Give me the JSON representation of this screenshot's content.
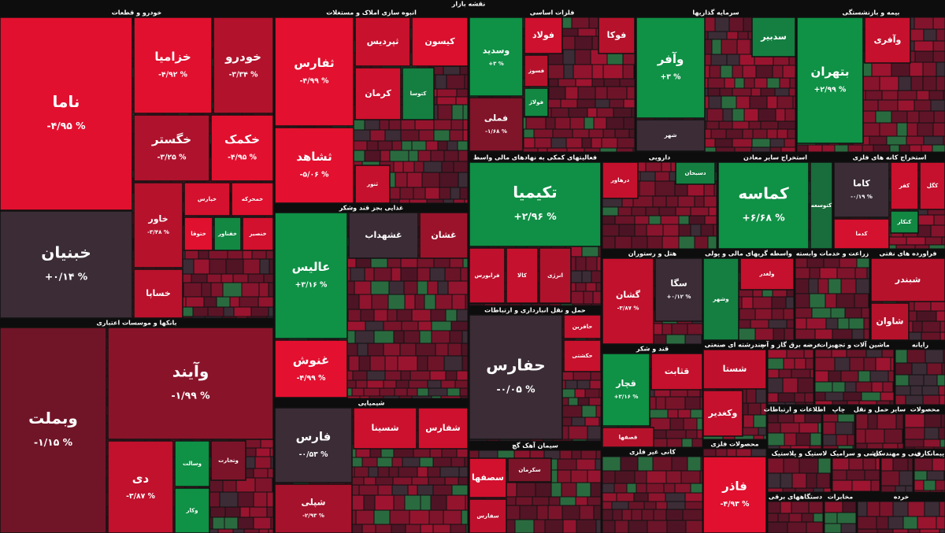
{
  "chart_data": {
    "type": "treemap",
    "title": "نقشه بازار",
    "sectors": [
      {
        "name": "خودرو و قطعات",
        "tiles": [
          {
            "name": "ناما",
            "value": -4.95,
            "value_label": "-۴/۹۵ %"
          },
          {
            "name": "خبنیان",
            "value": 0.14,
            "value_label": "+۰/۱۴ %"
          },
          {
            "name": "خزامیا",
            "value": -4.92,
            "value_label": "-۴/۹۲ %"
          },
          {
            "name": "خودرو",
            "value": -3.34,
            "value_label": "-۳/۳۴ %"
          },
          {
            "name": "خگستر",
            "value": -3.25,
            "value_label": "-۳/۲۵ %"
          },
          {
            "name": "خکمک",
            "value": -4.95,
            "value_label": "-۴/۹۵ %"
          },
          {
            "name": "خاور",
            "value": -3.48,
            "value_label": "-۳/۴۸ %"
          },
          {
            "name": "خساپا",
            "value": -3.61
          },
          {
            "name": "خپارس",
            "value": -4.5
          },
          {
            "name": "خمحرکه",
            "value": -4.9
          },
          {
            "name": "ختوقا",
            "value": -4.9
          },
          {
            "name": "خفناور",
            "value": 2.5
          },
          {
            "name": "خنصیر",
            "value": -4.4
          }
        ]
      },
      {
        "name": "بانکها و موسسات اعتباری",
        "tiles": [
          {
            "name": "وبملت",
            "value": -1.15,
            "value_label": "-۱/۱۵ %"
          },
          {
            "name": "وآیند",
            "value": -1.99,
            "value_label": "-۱/۹۹ %"
          },
          {
            "name": "دی",
            "value": -3.87,
            "value_label": "-۳/۸۷ %"
          },
          {
            "name": "وسالت",
            "value": 3
          },
          {
            "name": "وتجارت",
            "value": -1.5
          },
          {
            "name": "وکار",
            "value": 3
          }
        ]
      },
      {
        "name": "انبوه سازی املاک و مستغلات",
        "tiles": [
          {
            "name": "ثفارس",
            "value": -4.99,
            "value_label": "-۴/۹۹ %"
          },
          {
            "name": "ثشاهد",
            "value": -5.06,
            "value_label": "-۵/۰۶ %"
          },
          {
            "name": "ثپردیس",
            "value": -4.1
          },
          {
            "name": "کیسون",
            "value": -4.7
          },
          {
            "name": "کرمان",
            "value": -4.3
          },
          {
            "name": "کتوسا",
            "value": 2
          },
          {
            "name": "ثنور",
            "value": -4
          }
        ]
      },
      {
        "name": "غذایی بجز قند وشکر",
        "tiles": [
          {
            "name": "عالیس",
            "value": 3.16,
            "value_label": "+۳/۱۶ %"
          },
          {
            "name": "غنوش",
            "value": -4.99,
            "value_label": "-۴/۹۹ %"
          },
          {
            "name": "غشهداب",
            "value": -0.3
          },
          {
            "name": "غشان",
            "value": -2.6
          }
        ]
      },
      {
        "name": "شیمیایی",
        "tiles": [
          {
            "name": "فارس",
            "value": -0.53,
            "value_label": "-۰/۵۳ %"
          },
          {
            "name": "شپلی",
            "value": -2.93,
            "value_label": "-۲/۹۳ %"
          },
          {
            "name": "شسینا",
            "value": -4.2
          },
          {
            "name": "شفارس",
            "value": -4.3
          }
        ]
      },
      {
        "name": "فلزات اساسی",
        "tiles": [
          {
            "name": "وسدید",
            "value": 3,
            "value_label": "+۳ %"
          },
          {
            "name": "فملی",
            "value": -1.68,
            "value_label": "-۱/۶۸ %"
          },
          {
            "name": "فولاد",
            "value": -4.3
          },
          {
            "name": "فوکا",
            "value": -3.5
          },
          {
            "name": "فسوز",
            "value": -3.5
          },
          {
            "name": "فولاژ",
            "value": 2.5
          }
        ]
      },
      {
        "name": "سرمایه گذاریها",
        "tiles": [
          {
            "name": "وآفر",
            "value": 3,
            "value_label": "+۳ %"
          },
          {
            "name": "شهر",
            "value": -0.55
          },
          {
            "name": "سدبیر",
            "value": 2
          }
        ]
      },
      {
        "name": "بیمه و بازنشستگی",
        "tiles": [
          {
            "name": "بتهران",
            "value": 2.99,
            "value_label": "+۲/۹۹ %"
          },
          {
            "name": "وآفری",
            "value": -4
          }
        ]
      },
      {
        "name": "فعالیتهای کمکی به نهادهای مالی واسط",
        "tiles": [
          {
            "name": "تکیمیا",
            "value": 2.96,
            "value_label": "+۲/۹۶ %"
          },
          {
            "name": "فرابورس",
            "value": -3.8
          },
          {
            "name": "کالا",
            "value": -4
          },
          {
            "name": "انرژی",
            "value": -3.3
          }
        ]
      },
      {
        "name": "دارویی",
        "tiles": [
          {
            "name": "درهاور",
            "value": -4
          },
          {
            "name": "دسبحان",
            "value": 2
          }
        ]
      },
      {
        "name": "استخراج سایر معادن",
        "tiles": [
          {
            "name": "کماسه",
            "value": 6.68,
            "value_label": "+۶/۶۸ %"
          },
          {
            "name": "کتوسعه",
            "value": 1
          }
        ]
      },
      {
        "name": "استخراج کانه های فلزی",
        "tiles": [
          {
            "name": "کاما",
            "value": -0.19,
            "value_label": "-۰/۱۹ %"
          },
          {
            "name": "کفر",
            "value": -4.2
          },
          {
            "name": "کگل",
            "value": -4
          },
          {
            "name": "کدما",
            "value": -4.5
          },
          {
            "name": "کنکار",
            "value": 2.5
          }
        ]
      },
      {
        "name": "حمل و نقل انبارداری و ارتباطات",
        "tiles": [
          {
            "name": "حفارس",
            "value": -0.05,
            "value_label": "-۰/۰۵ %"
          },
          {
            "name": "حکشتی",
            "value": -4.1
          },
          {
            "name": "حافرین",
            "value": -4
          }
        ]
      },
      {
        "name": "سیمان آهک گچ",
        "tiles": [
          {
            "name": "سصفها",
            "value": -4.4
          },
          {
            "name": "سفارس",
            "value": -3.8
          },
          {
            "name": "سکرمان",
            "value": -1.5
          }
        ]
      },
      {
        "name": "هتل و رستوران",
        "tiles": [
          {
            "name": "گشان",
            "value": -3.87,
            "value_label": "-۳/۸۷ %"
          },
          {
            "name": "سگا",
            "value": 0.12,
            "value_label": "+۰/۱۲ %"
          }
        ]
      },
      {
        "name": "واسطه گریهای مالی و پولی",
        "tiles": [
          {
            "name": "وشهر",
            "value": 2
          },
          {
            "name": "ولغدر",
            "value": -4
          }
        ]
      },
      {
        "name": "زراعت و خدمات وابسته",
        "tiles": []
      },
      {
        "name": "فراورده های نفتی",
        "tiles": [
          {
            "name": "شبندر",
            "value": -3.5
          },
          {
            "name": "شاوان",
            "value": -3.5
          }
        ]
      },
      {
        "name": "قند و شکر",
        "tiles": [
          {
            "name": "قچار",
            "value": 3.16,
            "value_label": "+۳/۱۶ %"
          },
          {
            "name": "قثابت",
            "value": -4
          },
          {
            "name": "قصفها",
            "value": -3.5
          }
        ]
      },
      {
        "name": "چندرشته ای صنعتی",
        "tiles": [
          {
            "name": "شستا",
            "value": -3.8
          },
          {
            "name": "وکغدیر",
            "value": -4
          }
        ]
      },
      {
        "name": "عرضه برق گاز و آب",
        "tiles": []
      },
      {
        "name": "ماشین آلات و تجهیزات",
        "tiles": []
      },
      {
        "name": "رایانه",
        "tiles": []
      },
      {
        "name": "کانی غیر فلزی",
        "tiles": []
      },
      {
        "name": "محصولات فلزی",
        "tiles": [
          {
            "name": "فاذر",
            "value": -4.93,
            "value_label": "-۴/۹۳ %"
          }
        ]
      },
      {
        "name": "اطلاعات و ارتباطات",
        "tiles": []
      },
      {
        "name": "چاپ",
        "tiles": []
      },
      {
        "name": "سایر حمل و نقل",
        "tiles": []
      },
      {
        "name": "محصولات",
        "tiles": []
      },
      {
        "name": "لاستیک و پلاستیک",
        "tiles": []
      },
      {
        "name": "کاشی و سرامیک",
        "tiles": []
      },
      {
        "name": "فنی و مهندسی",
        "tiles": []
      },
      {
        "name": "پیمانکاری",
        "tiles": []
      },
      {
        "name": "دستگاههای برقی",
        "tiles": []
      },
      {
        "name": "مخابرات",
        "tiles": []
      },
      {
        "name": "خرده",
        "tiles": []
      }
    ]
  }
}
